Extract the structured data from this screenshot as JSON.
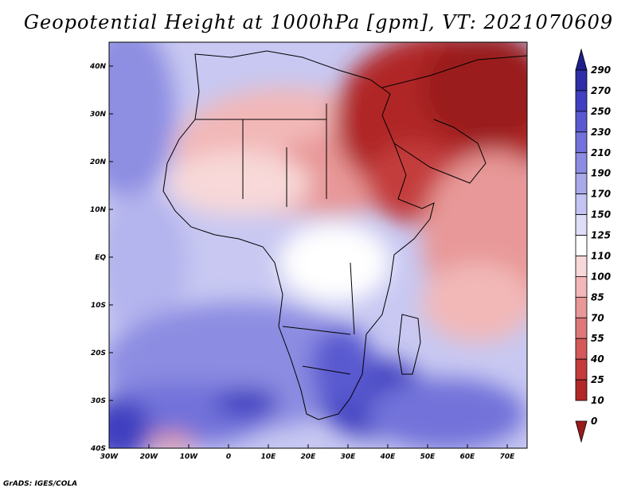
{
  "title": "Geopotential Height at 1000hPa [gpm], VT: 2021070609",
  "credit": "GrADS: IGES/COLA",
  "map": {
    "lon_range": [
      -30,
      75
    ],
    "lat_range": [
      -40,
      45
    ],
    "x_ticks": [
      {
        "lon": -30,
        "label": "30W"
      },
      {
        "lon": -20,
        "label": "20W"
      },
      {
        "lon": -10,
        "label": "10W"
      },
      {
        "lon": 0,
        "label": "0"
      },
      {
        "lon": 10,
        "label": "10E"
      },
      {
        "lon": 20,
        "label": "20E"
      },
      {
        "lon": 30,
        "label": "30E"
      },
      {
        "lon": 40,
        "label": "40E"
      },
      {
        "lon": 50,
        "label": "50E"
      },
      {
        "lon": 60,
        "label": "60E"
      },
      {
        "lon": 70,
        "label": "70E"
      }
    ],
    "y_ticks": [
      {
        "lat": 40,
        "label": "40N"
      },
      {
        "lat": 30,
        "label": "30N"
      },
      {
        "lat": 20,
        "label": "20N"
      },
      {
        "lat": 10,
        "label": "10N"
      },
      {
        "lat": 0,
        "label": "EQ"
      },
      {
        "lat": -10,
        "label": "10S"
      },
      {
        "lat": -20,
        "label": "20S"
      },
      {
        "lat": -30,
        "label": "30S"
      },
      {
        "lat": -40,
        "label": "40S"
      }
    ]
  },
  "colorbar": {
    "levels": [
      "290",
      "270",
      "250",
      "230",
      "210",
      "190",
      "170",
      "150",
      "125",
      "110",
      "100",
      "85",
      "70",
      "55",
      "40",
      "25",
      "10",
      "0"
    ],
    "colors": [
      "#1f1f8c",
      "#2e2ea6",
      "#4040c0",
      "#5a5ad0",
      "#7272da",
      "#8c8ce2",
      "#a8a8ea",
      "#c4c4f2",
      "#dedef8",
      "#ffffff",
      "#f8d8d8",
      "#f2b8b8",
      "#e89898",
      "#de7878",
      "#d45a5a",
      "#c43c3c",
      "#b02828",
      "#9a1a1a"
    ]
  }
}
